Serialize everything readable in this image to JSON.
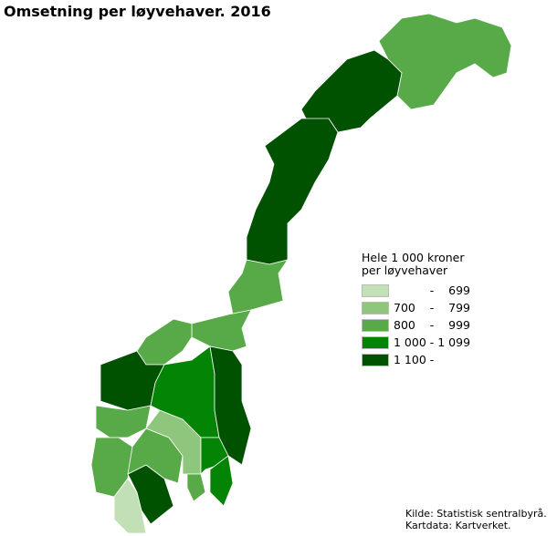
{
  "title": "Omsetning per løyvehaver. 2016",
  "legend": {
    "title_line1": "Hele 1 000 kroner",
    "title_line2": "per løyvehaver",
    "classes": [
      {
        "label": "          -    699",
        "color": "#c2e0b6"
      },
      {
        "label": "700    -    799",
        "color": "#8fc67e"
      },
      {
        "label": "800    -    999",
        "color": "#58a947"
      },
      {
        "label": "1 000 - 1 099",
        "color": "#048404"
      },
      {
        "label": "1 100 -",
        "color": "#005200"
      }
    ]
  },
  "regions": [
    {
      "id": "finnmark",
      "class": 2
    },
    {
      "id": "troms",
      "class": 4
    },
    {
      "id": "nordland",
      "class": 4
    },
    {
      "id": "nord-trondelag",
      "class": 2
    },
    {
      "id": "sor-trondelag",
      "class": 2
    },
    {
      "id": "more-og-romsdal",
      "class": 2
    },
    {
      "id": "sogn-og-fjordane",
      "class": 4
    },
    {
      "id": "hordaland",
      "class": 2
    },
    {
      "id": "rogaland",
      "class": 2
    },
    {
      "id": "vest-agder",
      "class": 0
    },
    {
      "id": "aust-agder",
      "class": 4
    },
    {
      "id": "telemark",
      "class": 2
    },
    {
      "id": "buskerud",
      "class": 1
    },
    {
      "id": "oppland",
      "class": 3
    },
    {
      "id": "hedmark",
      "class": 4
    },
    {
      "id": "akershus-oslo",
      "class": 3
    },
    {
      "id": "ostfold",
      "class": 3
    },
    {
      "id": "vestfold",
      "class": 2
    }
  ],
  "source": {
    "line1": "Kilde: Statistisk sentralbyrå.",
    "line2": "Kartdata: Kartverket."
  }
}
